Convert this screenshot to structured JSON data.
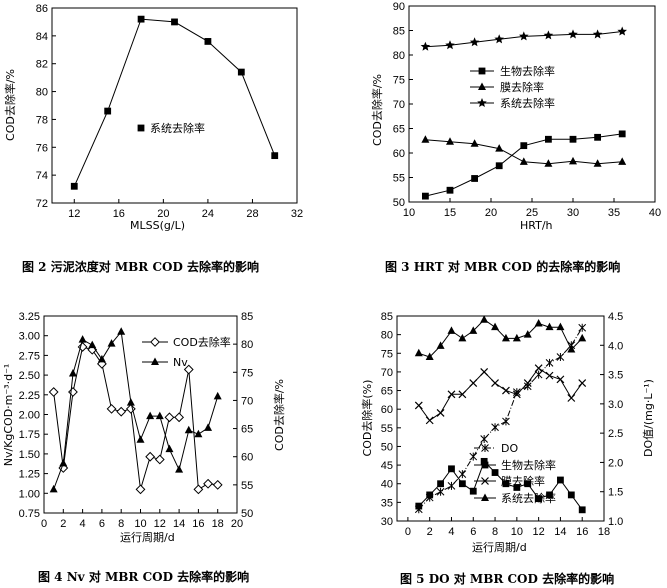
{
  "chart_data": [
    {
      "type": "line",
      "caption": "图 2   污泥浓度对 MBR COD 去除率的影响",
      "xlabel": "MLSS(g/L)",
      "ylabel": "COD去除率/%",
      "xlim": [
        10,
        32
      ],
      "ylim": [
        72,
        86
      ],
      "xticks": [
        12,
        16,
        20,
        24,
        28,
        32
      ],
      "yticks": [
        72,
        74,
        76,
        78,
        80,
        82,
        84,
        86
      ],
      "legend_position": "center",
      "series": [
        {
          "name": "系统去除率",
          "marker": "square",
          "x": [
            12,
            15,
            18,
            21,
            24,
            27,
            30
          ],
          "y": [
            73.2,
            78.6,
            85.2,
            85.0,
            83.6,
            81.4,
            75.4
          ]
        }
      ]
    },
    {
      "type": "line",
      "caption": "图 3   HRT 对 MBR COD 的去除率的影响",
      "xlabel": "HRT/h",
      "ylabel": "COD去除率/%",
      "xlim": [
        10,
        40
      ],
      "ylim": [
        50,
        90
      ],
      "xticks": [
        10,
        15,
        20,
        25,
        30,
        35,
        40
      ],
      "yticks": [
        50,
        55,
        60,
        65,
        70,
        75,
        80,
        85,
        90
      ],
      "legend_position": "center-right",
      "series": [
        {
          "name": "生物去除率",
          "marker": "square",
          "x": [
            12,
            15,
            18,
            21,
            24,
            27,
            30,
            33,
            36
          ],
          "y": [
            51.2,
            52.4,
            54.8,
            57.4,
            61.5,
            62.8,
            62.8,
            63.2,
            63.9
          ]
        },
        {
          "name": "膜去除率",
          "marker": "triangle",
          "x": [
            12,
            15,
            18,
            21,
            24,
            27,
            30,
            33,
            36
          ],
          "y": [
            62.7,
            62.3,
            61.9,
            60.9,
            58.2,
            57.8,
            58.3,
            57.8,
            58.2
          ]
        },
        {
          "name": "系统去除率",
          "marker": "star",
          "x": [
            12,
            15,
            18,
            21,
            24,
            27,
            30,
            33,
            36
          ],
          "y": [
            81.7,
            82.0,
            82.6,
            83.2,
            83.8,
            84.0,
            84.2,
            84.2,
            84.8
          ]
        }
      ]
    },
    {
      "type": "line",
      "caption": "图 4   Nv 对 MBR COD 去除率的影响",
      "xlabel": "运行周期/d",
      "ylabel_left": "Nv/KgCOD·m⁻³·d⁻¹",
      "ylabel_right": "COD去除率/%",
      "xlim": [
        0,
        20
      ],
      "ylim_left": [
        0.75,
        3.25
      ],
      "ylim_right": [
        50,
        85
      ],
      "xticks": [
        0,
        2,
        4,
        6,
        8,
        10,
        12,
        14,
        16,
        18,
        20
      ],
      "yticks_left": [
        0.75,
        1.0,
        1.25,
        1.5,
        1.75,
        2.0,
        2.25,
        2.5,
        2.75,
        3.0,
        3.25
      ],
      "yticks_right": [
        50,
        55,
        60,
        65,
        70,
        75,
        80,
        85
      ],
      "legend_position": "top-right",
      "series": [
        {
          "name": "COD去除率",
          "marker": "diamond-open",
          "axis": "right",
          "x": [
            1,
            2,
            3,
            4,
            5,
            6,
            7,
            8,
            9,
            10,
            11,
            12,
            13,
            14,
            15,
            16,
            17,
            18
          ],
          "y": [
            71.5,
            58,
            71.5,
            79.5,
            79,
            76.5,
            68.5,
            68,
            68.5,
            54.2,
            60,
            59.5,
            67,
            67,
            75.5,
            54.2,
            55.2,
            55
          ]
        },
        {
          "name": "Nv",
          "marker": "triangle",
          "axis": "left",
          "x": [
            1,
            2,
            3,
            4,
            5,
            6,
            7,
            8,
            9,
            10,
            11,
            12,
            13,
            14,
            15,
            16,
            17,
            18
          ],
          "y": [
            1.05,
            1.38,
            2.52,
            2.95,
            2.88,
            2.7,
            2.9,
            3.05,
            2.15,
            1.68,
            1.98,
            1.98,
            1.56,
            1.3,
            1.8,
            1.75,
            1.83,
            2.23
          ]
        }
      ]
    },
    {
      "type": "line",
      "caption": "图 5   DO 对 MBR COD 去除率的影响",
      "xlabel": "运行周期/d",
      "ylabel_left": "COD去除率(%)",
      "ylabel_right": "DO值/(mg·L⁻¹)",
      "xlim": [
        -1,
        18
      ],
      "ylim_left": [
        30,
        85
      ],
      "ylim_right": [
        1.0,
        4.5
      ],
      "xticks": [
        0,
        2,
        4,
        6,
        8,
        10,
        12,
        14,
        16,
        18
      ],
      "yticks_left": [
        30,
        35,
        40,
        45,
        50,
        55,
        60,
        65,
        70,
        75,
        80,
        85
      ],
      "yticks_right": [
        1.0,
        1.5,
        2.0,
        2.5,
        3.0,
        3.5,
        4.0,
        4.5
      ],
      "legend_position": "bottom-center",
      "series": [
        {
          "name": "DO",
          "marker": "asterisk",
          "axis": "right",
          "line": "dash-dot",
          "x": [
            1,
            2,
            3,
            4,
            5,
            6,
            7,
            8,
            9,
            10,
            11,
            12,
            13,
            14,
            15,
            16
          ],
          "y": [
            1.2,
            1.4,
            1.5,
            1.6,
            1.8,
            2.1,
            2.4,
            2.6,
            2.7,
            3.2,
            3.3,
            3.5,
            3.7,
            3.8,
            4.0,
            4.3
          ]
        },
        {
          "name": "生物去除率",
          "marker": "square",
          "axis": "left",
          "x": [
            1,
            2,
            3,
            4,
            5,
            6,
            7,
            8,
            9,
            10,
            11,
            12,
            13,
            14,
            15,
            16
          ],
          "y": [
            34,
            37,
            40,
            44,
            40,
            38,
            46,
            43,
            40,
            39,
            40,
            36,
            37,
            41,
            37,
            33
          ]
        },
        {
          "name": "膜去除率",
          "marker": "x",
          "axis": "left",
          "x": [
            1,
            2,
            3,
            4,
            5,
            6,
            7,
            8,
            9,
            10,
            11,
            12,
            13,
            14,
            15,
            16
          ],
          "y": [
            61,
            57,
            59,
            64,
            64,
            67,
            70,
            67,
            65,
            64,
            67,
            71,
            69,
            68,
            63,
            67
          ]
        },
        {
          "name": "系统去除率",
          "marker": "triangle",
          "axis": "left",
          "x": [
            1,
            2,
            3,
            4,
            5,
            6,
            7,
            8,
            9,
            10,
            11,
            12,
            13,
            14,
            15,
            16
          ],
          "y": [
            75,
            74,
            77,
            81,
            79,
            81,
            84,
            82,
            79,
            79,
            80,
            83,
            82,
            82,
            76,
            79
          ]
        }
      ]
    }
  ]
}
